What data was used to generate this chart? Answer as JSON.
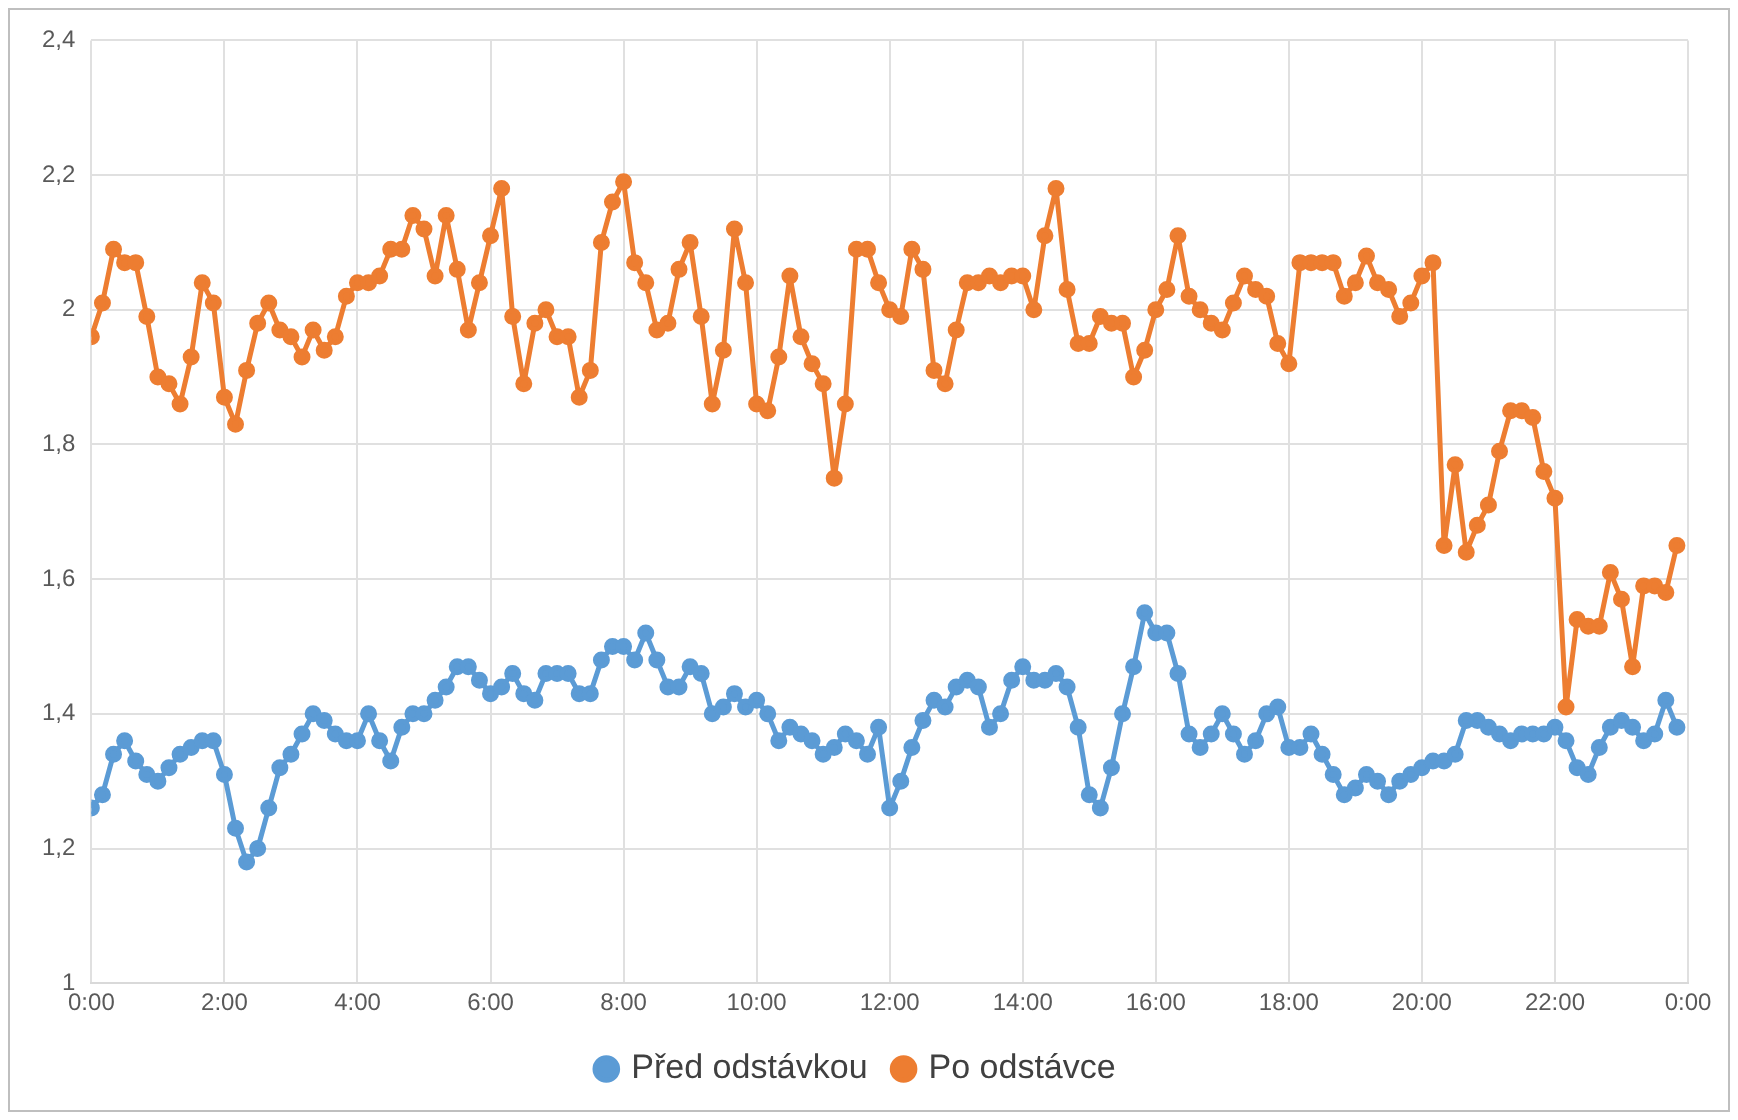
{
  "chart_data": {
    "type": "line",
    "x": [
      0,
      0.1667,
      0.3333,
      0.5,
      0.6667,
      0.8333,
      1,
      1.1667,
      1.3333,
      1.5,
      1.6667,
      1.8333,
      2,
      2.1667,
      2.3333,
      2.5,
      2.6667,
      2.8333,
      3,
      3.1667,
      3.3333,
      3.5,
      3.6667,
      3.8333,
      4,
      4.1667,
      4.3333,
      4.5,
      4.6667,
      4.8333,
      5,
      5.1667,
      5.3333,
      5.5,
      5.6667,
      5.8333,
      6,
      6.1667,
      6.3333,
      6.5,
      6.6667,
      6.8333,
      7,
      7.1667,
      7.3333,
      7.5,
      7.6667,
      7.8333,
      8,
      8.1667,
      8.3333,
      8.5,
      8.6667,
      8.8333,
      9,
      9.1667,
      9.3333,
      9.5,
      9.6667,
      9.8333,
      10,
      10.1667,
      10.3333,
      10.5,
      10.6667,
      10.8333,
      11,
      11.1667,
      11.3333,
      11.5,
      11.6667,
      11.8333,
      12,
      12.1667,
      12.3333,
      12.5,
      12.6667,
      12.8333,
      13,
      13.1667,
      13.3333,
      13.5,
      13.6667,
      13.8333,
      14,
      14.1667,
      14.3333,
      14.5,
      14.6667,
      14.8333,
      15,
      15.1667,
      15.3333,
      15.5,
      15.6667,
      15.8333,
      16,
      16.1667,
      16.3333,
      16.5,
      16.6667,
      16.8333,
      17,
      17.1667,
      17.3333,
      17.5,
      17.6667,
      17.8333,
      18,
      18.1667,
      18.3333,
      18.5,
      18.6667,
      18.8333,
      19,
      19.1667,
      19.3333,
      19.5,
      19.6667,
      19.8333,
      20,
      20.1667,
      20.3333,
      20.5,
      20.6667,
      20.8333,
      21,
      21.1667,
      21.3333,
      21.5,
      21.6667,
      21.8333,
      22,
      22.1667,
      22.3333,
      22.5,
      22.6667,
      22.8333,
      23,
      23.1667,
      23.3333,
      23.5,
      23.6667,
      23.8333
    ],
    "series": [
      {
        "name": "Před odstávkou",
        "color": "#5b9bd5",
        "values": [
          1.26,
          1.28,
          1.34,
          1.36,
          1.33,
          1.31,
          1.3,
          1.32,
          1.34,
          1.35,
          1.36,
          1.36,
          1.31,
          1.23,
          1.18,
          1.2,
          1.26,
          1.32,
          1.34,
          1.37,
          1.4,
          1.39,
          1.37,
          1.36,
          1.36,
          1.4,
          1.36,
          1.33,
          1.38,
          1.4,
          1.4,
          1.42,
          1.44,
          1.47,
          1.47,
          1.45,
          1.43,
          1.44,
          1.46,
          1.43,
          1.42,
          1.46,
          1.46,
          1.46,
          1.43,
          1.43,
          1.48,
          1.5,
          1.5,
          1.48,
          1.52,
          1.48,
          1.44,
          1.44,
          1.47,
          1.46,
          1.4,
          1.41,
          1.43,
          1.41,
          1.42,
          1.4,
          1.36,
          1.38,
          1.37,
          1.36,
          1.34,
          1.35,
          1.37,
          1.36,
          1.34,
          1.38,
          1.26,
          1.3,
          1.35,
          1.39,
          1.42,
          1.41,
          1.44,
          1.45,
          1.44,
          1.38,
          1.4,
          1.45,
          1.47,
          1.45,
          1.45,
          1.46,
          1.44,
          1.38,
          1.28,
          1.26,
          1.32,
          1.4,
          1.47,
          1.55,
          1.52,
          1.52,
          1.46,
          1.37,
          1.35,
          1.37,
          1.4,
          1.37,
          1.34,
          1.36,
          1.4,
          1.41,
          1.35,
          1.35,
          1.37,
          1.34,
          1.31,
          1.28,
          1.29,
          1.31,
          1.3,
          1.28,
          1.3,
          1.31,
          1.32,
          1.33,
          1.33,
          1.34,
          1.39,
          1.39,
          1.38,
          1.37,
          1.36,
          1.37,
          1.37,
          1.37,
          1.38,
          1.36,
          1.32,
          1.31,
          1.35,
          1.38,
          1.39,
          1.38,
          1.36,
          1.37,
          1.42,
          1.38
        ]
      },
      {
        "name": "Po odstávce",
        "color": "#ed7d31",
        "values": [
          1.96,
          2.01,
          2.09,
          2.07,
          2.07,
          1.99,
          1.9,
          1.89,
          1.86,
          1.93,
          2.04,
          2.01,
          1.87,
          1.83,
          1.91,
          1.98,
          2.01,
          1.97,
          1.96,
          1.93,
          1.97,
          1.94,
          1.96,
          2.02,
          2.04,
          2.04,
          2.05,
          2.09,
          2.09,
          2.14,
          2.12,
          2.05,
          2.14,
          2.06,
          1.97,
          2.04,
          2.11,
          2.18,
          1.99,
          1.89,
          1.98,
          2.0,
          1.96,
          1.96,
          1.87,
          1.91,
          2.1,
          2.16,
          2.19,
          2.07,
          2.04,
          1.97,
          1.98,
          2.06,
          2.1,
          1.99,
          1.86,
          1.94,
          2.12,
          2.04,
          1.86,
          1.85,
          1.93,
          2.05,
          1.96,
          1.92,
          1.89,
          1.75,
          1.86,
          2.09,
          2.09,
          2.04,
          2.0,
          1.99,
          2.09,
          2.06,
          1.91,
          1.89,
          1.97,
          2.04,
          2.04,
          2.05,
          2.04,
          2.05,
          2.05,
          2.0,
          2.11,
          2.18,
          2.03,
          1.95,
          1.95,
          1.99,
          1.98,
          1.98,
          1.9,
          1.94,
          2.0,
          2.03,
          2.11,
          2.02,
          2.0,
          1.98,
          1.97,
          2.01,
          2.05,
          2.03,
          2.02,
          1.95,
          1.92,
          2.07,
          2.07,
          2.07,
          2.07,
          2.02,
          2.04,
          2.08,
          2.04,
          2.03,
          1.99,
          2.01,
          2.05,
          2.07,
          1.65,
          1.77,
          1.64,
          1.68,
          1.71,
          1.79,
          1.85,
          1.85,
          1.84,
          1.76,
          1.72,
          1.41,
          1.54,
          1.53,
          1.53,
          1.61,
          1.57,
          1.47,
          1.59,
          1.59,
          1.58,
          1.65
        ]
      }
    ],
    "xlim": [
      0,
      24
    ],
    "xticks": [
      {
        "value": 0,
        "label": "0:00"
      },
      {
        "value": 2,
        "label": "2:00"
      },
      {
        "value": 4,
        "label": "4:00"
      },
      {
        "value": 6,
        "label": "6:00"
      },
      {
        "value": 8,
        "label": "8:00"
      },
      {
        "value": 10,
        "label": "10:00"
      },
      {
        "value": 12,
        "label": "12:00"
      },
      {
        "value": 14,
        "label": "14:00"
      },
      {
        "value": 16,
        "label": "16:00"
      },
      {
        "value": 18,
        "label": "18:00"
      },
      {
        "value": 20,
        "label": "20:00"
      },
      {
        "value": 22,
        "label": "22:00"
      },
      {
        "value": 24,
        "label": "0:00"
      }
    ],
    "ylim": [
      1,
      2.4
    ],
    "yticks": [
      1,
      {
        "value": 1.2,
        "label": "1,2"
      },
      {
        "value": 1.4,
        "label": "1,4"
      },
      {
        "value": 1.6,
        "label": "1,6"
      },
      {
        "value": 1.8,
        "label": "1,8"
      },
      2,
      {
        "value": 2.2,
        "label": "2,2"
      },
      {
        "value": 2.4,
        "label": "2,4"
      }
    ],
    "grid": true,
    "legend": "bottom",
    "marker": "circle",
    "line_style": "solid"
  }
}
